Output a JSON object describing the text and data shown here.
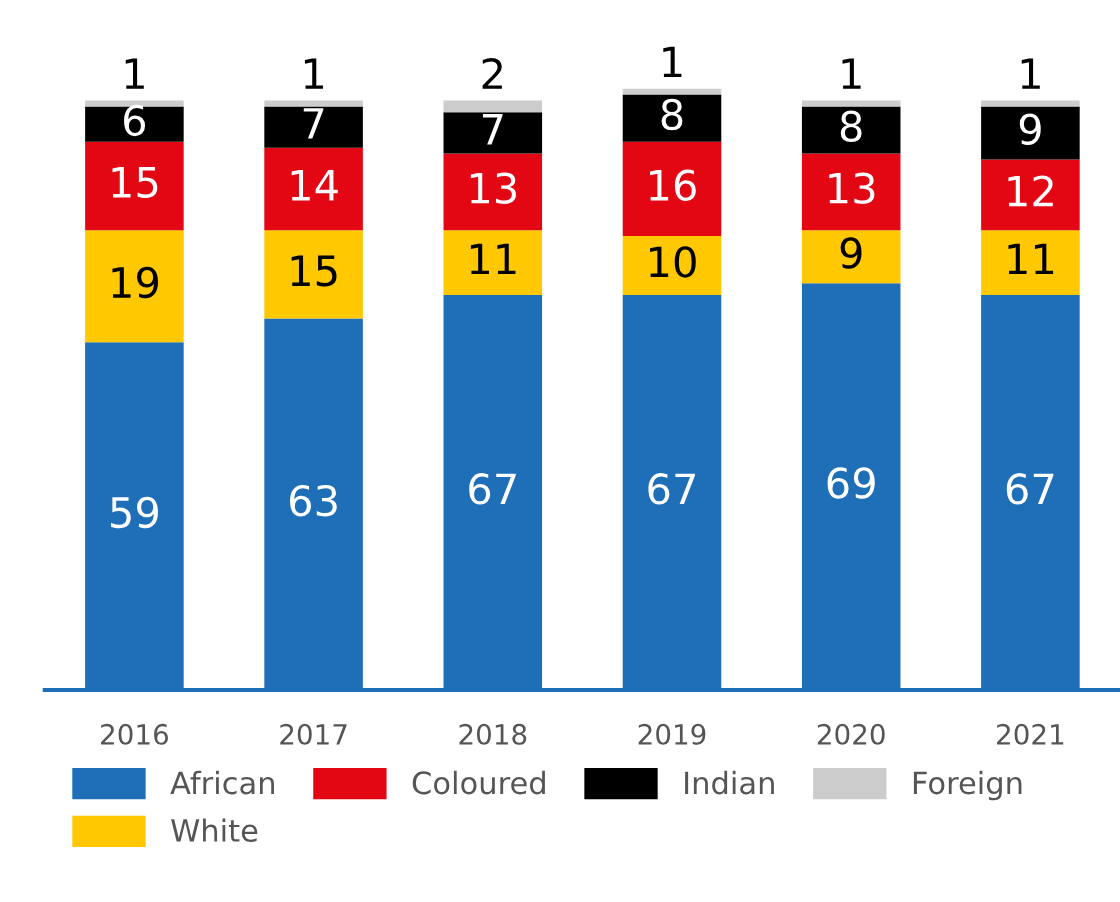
{
  "chart_data": {
    "type": "bar",
    "stacked": true,
    "data_labels": true,
    "legend": "bottom",
    "grid": false,
    "categories": [
      "2016",
      "2017",
      "2018",
      "2019",
      "2020",
      "2021"
    ],
    "series": [
      {
        "name": "African",
        "color": "#1f6fb8",
        "values": [
          59,
          63,
          67,
          67,
          69,
          67
        ]
      },
      {
        "name": "White",
        "color": "#ffc800",
        "values": [
          19,
          15,
          11,
          10,
          9,
          11
        ]
      },
      {
        "name": "Coloured",
        "color": "#e30613",
        "values": [
          15,
          14,
          13,
          16,
          13,
          12
        ]
      },
      {
        "name": "Indian",
        "color": "#000000",
        "values": [
          6,
          7,
          7,
          8,
          8,
          9
        ]
      },
      {
        "name": "Foreign",
        "color": "#cccccc",
        "values": [
          1,
          1,
          2,
          1,
          1,
          1
        ]
      }
    ]
  }
}
